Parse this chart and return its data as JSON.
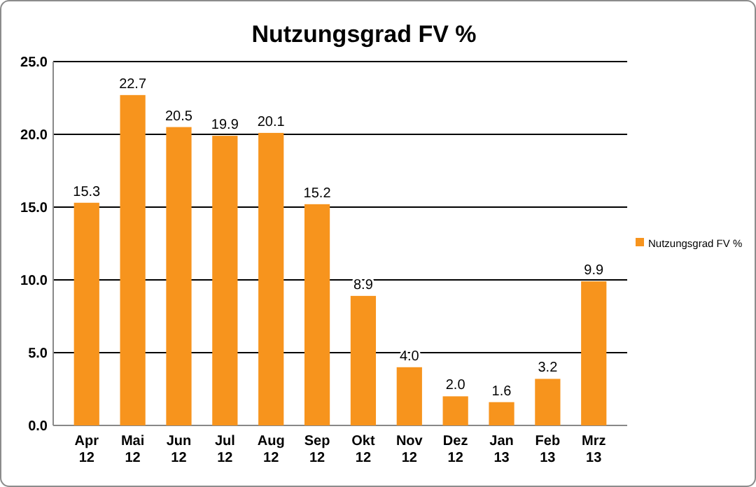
{
  "chart_data": {
    "type": "bar",
    "title": "Nutzungsgrad FV %",
    "categories": [
      "Apr 12",
      "Mai 12",
      "Jun 12",
      "Jul 12",
      "Aug 12",
      "Sep 12",
      "Okt 12",
      "Nov 12",
      "Dez 12",
      "Jan 13",
      "Feb 13",
      "Mrz 13"
    ],
    "series": [
      {
        "name": "Nutzungsgrad FV %",
        "color": "#f7941d",
        "values": [
          15.3,
          22.7,
          20.5,
          19.9,
          20.1,
          15.2,
          8.9,
          4.0,
          2.0,
          1.6,
          3.2,
          9.9
        ],
        "value_labels": [
          "15.3",
          "22.7",
          "20.5",
          "19.9",
          "20.1",
          "15.2",
          "8.9",
          "4.0",
          "2.0",
          "1.6",
          "3.2",
          "9.9"
        ]
      }
    ],
    "ylim": [
      0,
      25
    ],
    "yticks": [
      {
        "value": 0,
        "label": "0.0"
      },
      {
        "value": 5,
        "label": "5.0"
      },
      {
        "value": 10,
        "label": "10.0"
      },
      {
        "value": 15,
        "label": "15.0"
      },
      {
        "value": 20,
        "label": "20.0"
      },
      {
        "value": 25,
        "label": "25.0"
      }
    ],
    "grid": "y",
    "legend": "right"
  }
}
